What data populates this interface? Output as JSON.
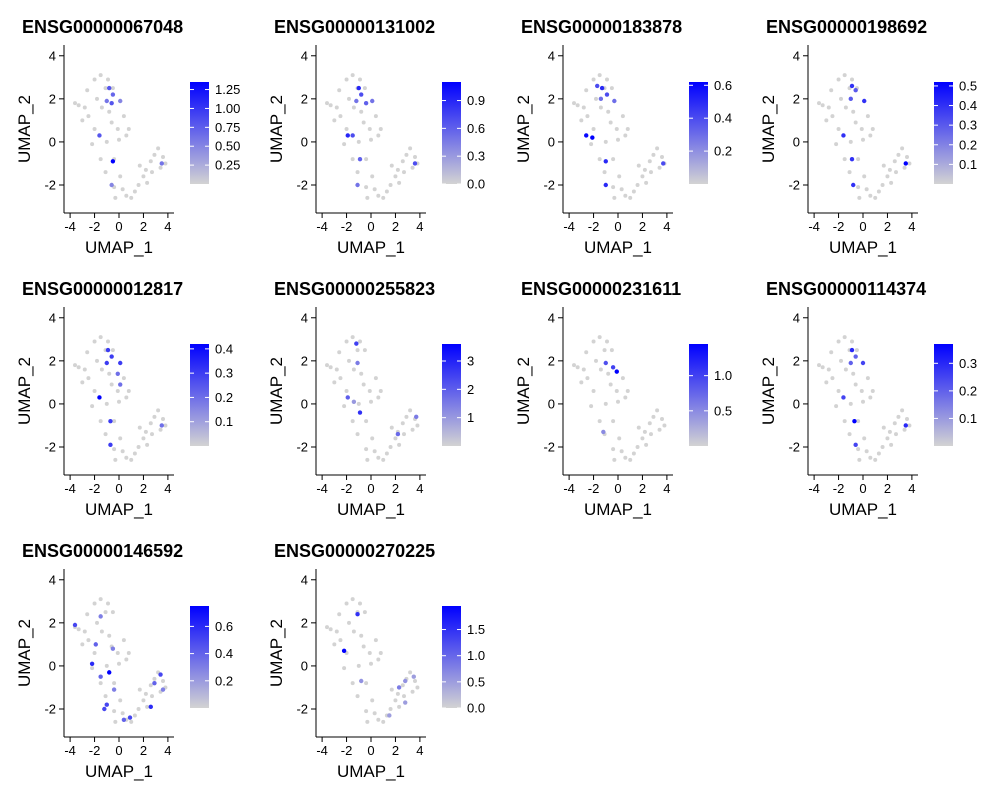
{
  "figure": {
    "background": "#ffffff",
    "axis_color": "#000000",
    "low_color": "#d3d3d3",
    "high_color": "#0000ff",
    "point_color_default": "#d3d3d3"
  },
  "chart_data": [
    {
      "type": "scatter",
      "title": "ENSG00000067048",
      "xlabel": "UMAP_1",
      "ylabel": "UMAP_2",
      "xlim": [
        -4.5,
        4.5
      ],
      "ylim": [
        -3.3,
        4.5
      ],
      "x_ticks": [
        -4,
        -2,
        0,
        2,
        4
      ],
      "x_tick_labels": [
        "-4",
        "-2",
        "0",
        "2",
        "4"
      ],
      "y_ticks": [
        -2,
        0,
        2,
        4
      ],
      "y_tick_labels": [
        "-2",
        "0",
        "2",
        "4"
      ],
      "color_scale": {
        "min": 0,
        "max": 1.35,
        "low_color": "#d3d3d3",
        "high_color": "#0000ff",
        "ticks": [
          0.25,
          0.5,
          0.75,
          1.0,
          1.25
        ],
        "tick_labels": [
          "0.25",
          "0.50",
          "0.75",
          "1.00",
          "1.25"
        ]
      },
      "points": [
        {
          "x": -0.8,
          "y": 2.5,
          "v": 0.8
        },
        {
          "x": -0.5,
          "y": 2.2,
          "v": 0.7
        },
        {
          "x": -1.0,
          "y": 1.9,
          "v": 0.6
        },
        {
          "x": -0.6,
          "y": 1.8,
          "v": 0.8
        },
        {
          "x": 0.1,
          "y": 1.9,
          "v": 0.5
        },
        {
          "x": -1.6,
          "y": 0.3,
          "v": 0.8
        },
        {
          "x": -0.5,
          "y": -0.9,
          "v": 1.35
        },
        {
          "x": -0.6,
          "y": -2.0,
          "v": 0.5
        },
        {
          "x": 3.5,
          "y": -1.0,
          "v": 0.6
        }
      ]
    },
    {
      "type": "scatter",
      "title": "ENSG00000131002",
      "xlabel": "UMAP_1",
      "ylabel": "UMAP_2",
      "xlim": [
        -4.5,
        4.5
      ],
      "ylim": [
        -3.3,
        4.5
      ],
      "x_ticks": [
        -4,
        -2,
        0,
        2,
        4
      ],
      "x_tick_labels": [
        "-4",
        "-2",
        "0",
        "2",
        "4"
      ],
      "y_ticks": [
        -2,
        0,
        2,
        4
      ],
      "y_tick_labels": [
        "-2",
        "0",
        "2",
        "4"
      ],
      "color_scale": {
        "min": 0,
        "max": 1.1,
        "low_color": "#d3d3d3",
        "high_color": "#0000ff",
        "ticks": [
          0.0,
          0.3,
          0.6,
          0.9
        ],
        "tick_labels": [
          "0.0",
          "0.3",
          "0.6",
          "0.9"
        ]
      },
      "points": [
        {
          "x": -1.0,
          "y": 2.5,
          "v": 0.9
        },
        {
          "x": -0.8,
          "y": 2.2,
          "v": 0.7
        },
        {
          "x": -1.2,
          "y": 1.9,
          "v": 0.5
        },
        {
          "x": -0.4,
          "y": 1.8,
          "v": 0.6
        },
        {
          "x": 0.1,
          "y": 1.9,
          "v": 0.5
        },
        {
          "x": -1.9,
          "y": 0.3,
          "v": 0.9
        },
        {
          "x": -1.5,
          "y": 0.3,
          "v": 0.7
        },
        {
          "x": -0.9,
          "y": -0.8,
          "v": 0.6
        },
        {
          "x": -1.1,
          "y": -2.0,
          "v": 0.5
        },
        {
          "x": 3.6,
          "y": -1.0,
          "v": 0.7
        }
      ]
    },
    {
      "type": "scatter",
      "title": "ENSG00000183878",
      "xlabel": "UMAP_1",
      "ylabel": "UMAP_2",
      "xlim": [
        -4.5,
        4.5
      ],
      "ylim": [
        -3.3,
        4.5
      ],
      "x_ticks": [
        -4,
        -2,
        0,
        2,
        4
      ],
      "x_tick_labels": [
        "-4",
        "-2",
        "0",
        "2",
        "4"
      ],
      "y_ticks": [
        -2,
        0,
        2,
        4
      ],
      "y_tick_labels": [
        "-2",
        "0",
        "2",
        "4"
      ],
      "color_scale": {
        "min": 0,
        "max": 0.62,
        "low_color": "#d3d3d3",
        "high_color": "#0000ff",
        "ticks": [
          0.2,
          0.4,
          0.6
        ],
        "tick_labels": [
          "0.2",
          "0.4",
          "0.6"
        ]
      },
      "points": [
        {
          "x": -1.7,
          "y": 2.6,
          "v": 0.4
        },
        {
          "x": -1.3,
          "y": 2.5,
          "v": 0.5
        },
        {
          "x": -0.9,
          "y": 2.2,
          "v": 0.4
        },
        {
          "x": -1.4,
          "y": 2.0,
          "v": 0.3
        },
        {
          "x": -0.3,
          "y": 1.9,
          "v": 0.3
        },
        {
          "x": -2.6,
          "y": 0.3,
          "v": 0.6
        },
        {
          "x": -2.1,
          "y": 0.2,
          "v": 0.62
        },
        {
          "x": -1.0,
          "y": -0.9,
          "v": 0.5
        },
        {
          "x": -1.0,
          "y": -2.0,
          "v": 0.5
        },
        {
          "x": 3.7,
          "y": -1.0,
          "v": 0.4
        }
      ]
    },
    {
      "type": "scatter",
      "title": "ENSG00000198692",
      "xlabel": "UMAP_1",
      "ylabel": "UMAP_2",
      "xlim": [
        -4.5,
        4.5
      ],
      "ylim": [
        -3.3,
        4.5
      ],
      "x_ticks": [
        -4,
        -2,
        0,
        2,
        4
      ],
      "x_tick_labels": [
        "-4",
        "-2",
        "0",
        "2",
        "4"
      ],
      "y_ticks": [
        -2,
        0,
        2,
        4
      ],
      "y_tick_labels": [
        "-2",
        "0",
        "2",
        "4"
      ],
      "color_scale": {
        "min": 0,
        "max": 0.52,
        "low_color": "#d3d3d3",
        "high_color": "#0000ff",
        "ticks": [
          0.1,
          0.2,
          0.3,
          0.4,
          0.5
        ],
        "tick_labels": [
          "0.1",
          "0.2",
          "0.3",
          "0.4",
          "0.5"
        ]
      },
      "points": [
        {
          "x": -0.9,
          "y": 2.6,
          "v": 0.4
        },
        {
          "x": -0.6,
          "y": 2.4,
          "v": 0.3
        },
        {
          "x": -1.0,
          "y": 2.0,
          "v": 0.3
        },
        {
          "x": 0.1,
          "y": 1.9,
          "v": 0.4
        },
        {
          "x": -1.6,
          "y": 0.3,
          "v": 0.4
        },
        {
          "x": -0.9,
          "y": -0.8,
          "v": 0.4
        },
        {
          "x": -0.8,
          "y": -2.0,
          "v": 0.4
        },
        {
          "x": 3.5,
          "y": -1.0,
          "v": 0.52
        }
      ]
    },
    {
      "type": "scatter",
      "title": "ENSG00000012817",
      "xlabel": "UMAP_1",
      "ylabel": "UMAP_2",
      "xlim": [
        -4.5,
        4.5
      ],
      "ylim": [
        -3.3,
        4.5
      ],
      "x_ticks": [
        -4,
        -2,
        0,
        2,
        4
      ],
      "x_tick_labels": [
        "-4",
        "-2",
        "0",
        "2",
        "4"
      ],
      "y_ticks": [
        -2,
        0,
        2,
        4
      ],
      "y_tick_labels": [
        "-2",
        "0",
        "2",
        "4"
      ],
      "color_scale": {
        "min": 0,
        "max": 0.42,
        "low_color": "#d3d3d3",
        "high_color": "#0000ff",
        "ticks": [
          0.1,
          0.2,
          0.3,
          0.4
        ],
        "tick_labels": [
          "0.1",
          "0.2",
          "0.3",
          "0.4"
        ]
      },
      "points": [
        {
          "x": -0.9,
          "y": 2.5,
          "v": 0.3
        },
        {
          "x": -0.6,
          "y": 2.2,
          "v": 0.3
        },
        {
          "x": -1.0,
          "y": 1.9,
          "v": 0.3
        },
        {
          "x": 0.1,
          "y": 1.9,
          "v": 0.3
        },
        {
          "x": -0.1,
          "y": 1.4,
          "v": 0.2
        },
        {
          "x": 0.1,
          "y": 0.9,
          "v": 0.2
        },
        {
          "x": -1.6,
          "y": 0.3,
          "v": 0.42
        },
        {
          "x": -0.7,
          "y": -0.8,
          "v": 0.3
        },
        {
          "x": -0.7,
          "y": -1.9,
          "v": 0.3
        },
        {
          "x": 3.5,
          "y": -1.0,
          "v": 0.2
        }
      ]
    },
    {
      "type": "scatter",
      "title": "ENSG00000255823",
      "xlabel": "UMAP_1",
      "ylabel": "UMAP_2",
      "xlim": [
        -4.5,
        4.5
      ],
      "ylim": [
        -3.3,
        4.5
      ],
      "x_ticks": [
        -4,
        -2,
        0,
        2,
        4
      ],
      "x_tick_labels": [
        "-4",
        "-2",
        "0",
        "2",
        "4"
      ],
      "y_ticks": [
        -2,
        0,
        2,
        4
      ],
      "y_tick_labels": [
        "-2",
        "0",
        "2",
        "4"
      ],
      "color_scale": {
        "min": 0,
        "max": 3.6,
        "low_color": "#d3d3d3",
        "high_color": "#0000ff",
        "ticks": [
          1,
          2,
          3
        ],
        "tick_labels": [
          "1",
          "2",
          "3"
        ]
      },
      "points": [
        {
          "x": -1.2,
          "y": 2.8,
          "v": 2.5
        },
        {
          "x": -1.1,
          "y": 1.9,
          "v": 1.5
        },
        {
          "x": -1.9,
          "y": 0.3,
          "v": 2.0
        },
        {
          "x": -1.4,
          "y": 0.1,
          "v": 1.0
        },
        {
          "x": -0.9,
          "y": -0.4,
          "v": 2.8
        },
        {
          "x": 2.2,
          "y": -1.4,
          "v": 1.8
        },
        {
          "x": 3.7,
          "y": -0.6,
          "v": 1.5
        }
      ]
    },
    {
      "type": "scatter",
      "title": "ENSG00000231611",
      "xlabel": "UMAP_1",
      "ylabel": "UMAP_2",
      "xlim": [
        -4.5,
        4.5
      ],
      "ylim": [
        -3.3,
        4.5
      ],
      "x_ticks": [
        -4,
        -2,
        0,
        2,
        4
      ],
      "x_tick_labels": [
        "-4",
        "-2",
        "0",
        "2",
        "4"
      ],
      "y_ticks": [
        -2,
        0,
        2,
        4
      ],
      "y_tick_labels": [
        "-2",
        "0",
        "2",
        "4"
      ],
      "color_scale": {
        "min": 0,
        "max": 1.45,
        "low_color": "#d3d3d3",
        "high_color": "#0000ff",
        "ticks": [
          0.5,
          1.0
        ],
        "tick_labels": [
          "0.5",
          "1.0"
        ]
      },
      "points": [
        {
          "x": -1.0,
          "y": 1.9,
          "v": 0.9
        },
        {
          "x": -0.4,
          "y": 1.7,
          "v": 1.0
        },
        {
          "x": -0.1,
          "y": 1.5,
          "v": 1.45
        },
        {
          "x": -1.2,
          "y": -1.3,
          "v": 0.5
        }
      ]
    },
    {
      "type": "scatter",
      "title": "ENSG00000114374",
      "xlabel": "UMAP_1",
      "ylabel": "UMAP_2",
      "xlim": [
        -4.5,
        4.5
      ],
      "ylim": [
        -3.3,
        4.5
      ],
      "x_ticks": [
        -4,
        -2,
        0,
        2,
        4
      ],
      "x_tick_labels": [
        "-4",
        "-2",
        "0",
        "2",
        "4"
      ],
      "y_ticks": [
        -2,
        0,
        2,
        4
      ],
      "y_tick_labels": [
        "-2",
        "0",
        "2",
        "4"
      ],
      "color_scale": {
        "min": 0,
        "max": 0.37,
        "low_color": "#d3d3d3",
        "high_color": "#0000ff",
        "ticks": [
          0.1,
          0.2,
          0.3
        ],
        "tick_labels": [
          "0.1",
          "0.2",
          "0.3"
        ]
      },
      "points": [
        {
          "x": -0.9,
          "y": 2.5,
          "v": 0.3
        },
        {
          "x": -0.6,
          "y": 2.2,
          "v": 0.2
        },
        {
          "x": -1.0,
          "y": 1.9,
          "v": 0.2
        },
        {
          "x": 0.0,
          "y": 1.9,
          "v": 0.25
        },
        {
          "x": -1.6,
          "y": 0.3,
          "v": 0.25
        },
        {
          "x": -0.7,
          "y": -0.8,
          "v": 0.37
        },
        {
          "x": -0.6,
          "y": -1.9,
          "v": 0.25
        },
        {
          "x": 3.5,
          "y": -1.0,
          "v": 0.3
        }
      ]
    },
    {
      "type": "scatter",
      "title": "ENSG00000146592",
      "xlabel": "UMAP_1",
      "ylabel": "UMAP_2",
      "xlim": [
        -4.5,
        4.5
      ],
      "ylim": [
        -3.3,
        4.5
      ],
      "x_ticks": [
        -4,
        -2,
        0,
        2,
        4
      ],
      "x_tick_labels": [
        "-4",
        "-2",
        "0",
        "2",
        "4"
      ],
      "y_ticks": [
        -2,
        0,
        2,
        4
      ],
      "y_tick_labels": [
        "-2",
        "0",
        "2",
        "4"
      ],
      "color_scale": {
        "min": 0,
        "max": 0.75,
        "low_color": "#d3d3d3",
        "high_color": "#0000ff",
        "ticks": [
          0.2,
          0.4,
          0.6
        ],
        "tick_labels": [
          "0.2",
          "0.4",
          "0.6"
        ]
      },
      "points": [
        {
          "x": -3.6,
          "y": 1.9,
          "v": 0.5
        },
        {
          "x": -1.5,
          "y": 2.3,
          "v": 0.3
        },
        {
          "x": -1.9,
          "y": 1.0,
          "v": 0.4
        },
        {
          "x": -0.5,
          "y": 0.8,
          "v": 0.3
        },
        {
          "x": -2.2,
          "y": 0.1,
          "v": 0.6
        },
        {
          "x": -1.5,
          "y": -0.5,
          "v": 0.4
        },
        {
          "x": -0.8,
          "y": -0.3,
          "v": 0.75
        },
        {
          "x": -0.4,
          "y": -1.1,
          "v": 0.3
        },
        {
          "x": -1.0,
          "y": -1.8,
          "v": 0.5
        },
        {
          "x": -1.2,
          "y": -2.0,
          "v": 0.5
        },
        {
          "x": 0.4,
          "y": -2.5,
          "v": 0.4
        },
        {
          "x": 0.9,
          "y": -2.4,
          "v": 0.5
        },
        {
          "x": 2.6,
          "y": -1.9,
          "v": 0.6
        },
        {
          "x": 3.4,
          "y": -0.4,
          "v": 0.5
        },
        {
          "x": 2.9,
          "y": -0.8,
          "v": 0.4
        },
        {
          "x": 3.6,
          "y": -1.1,
          "v": 0.3
        }
      ]
    },
    {
      "type": "scatter",
      "title": "ENSG00000270225",
      "xlabel": "UMAP_1",
      "ylabel": "UMAP_2",
      "xlim": [
        -4.5,
        4.5
      ],
      "ylim": [
        -3.3,
        4.5
      ],
      "x_ticks": [
        -4,
        -2,
        0,
        2,
        4
      ],
      "x_tick_labels": [
        "-4",
        "-2",
        "0",
        "2",
        "4"
      ],
      "y_ticks": [
        -2,
        0,
        2,
        4
      ],
      "y_tick_labels": [
        "-2",
        "0",
        "2",
        "4"
      ],
      "color_scale": {
        "min": 0,
        "max": 1.95,
        "low_color": "#d3d3d3",
        "high_color": "#0000ff",
        "ticks": [
          0.0,
          0.5,
          1.0,
          1.5
        ],
        "tick_labels": [
          "0.0",
          "0.5",
          "1.0",
          "1.5"
        ]
      },
      "points": [
        {
          "x": -1.1,
          "y": 2.4,
          "v": 1.5
        },
        {
          "x": -2.2,
          "y": 0.7,
          "v": 1.95
        },
        {
          "x": -0.8,
          "y": -0.7,
          "v": 0.6
        },
        {
          "x": 2.3,
          "y": -1.0,
          "v": 0.8
        },
        {
          "x": 2.8,
          "y": -0.7,
          "v": 0.6
        },
        {
          "x": 3.5,
          "y": -0.5,
          "v": 0.5
        },
        {
          "x": 2.8,
          "y": -1.7,
          "v": 0.5
        },
        {
          "x": 1.5,
          "y": -2.3,
          "v": 0.5
        }
      ]
    }
  ],
  "background_cells": [
    [
      -3.6,
      1.8
    ],
    [
      -3.3,
      1.7
    ],
    [
      -2.6,
      2.4
    ],
    [
      -2.0,
      2.9
    ],
    [
      -1.5,
      3.1
    ],
    [
      -0.9,
      2.9
    ],
    [
      -0.5,
      2.5
    ],
    [
      -1.8,
      2.0
    ],
    [
      -1.4,
      1.6
    ],
    [
      -2.5,
      1.2
    ],
    [
      -3.0,
      1.0
    ],
    [
      -0.6,
      0.9
    ],
    [
      -0.1,
      0.6
    ],
    [
      0.4,
      1.2
    ],
    [
      0.8,
      0.6
    ],
    [
      -2.0,
      0.6
    ],
    [
      -1.0,
      0.0
    ],
    [
      -1.5,
      -0.8
    ],
    [
      -0.4,
      -0.8
    ],
    [
      -1.1,
      -1.4
    ],
    [
      0.1,
      -1.6
    ],
    [
      -0.4,
      -2.1
    ],
    [
      -0.3,
      -2.6
    ],
    [
      0.3,
      -2.2
    ],
    [
      0.6,
      -2.5
    ],
    [
      1.0,
      -2.6
    ],
    [
      1.3,
      -2.3
    ],
    [
      1.6,
      -2.0
    ],
    [
      2.0,
      -1.6
    ],
    [
      1.7,
      -1.1
    ],
    [
      2.2,
      -1.3
    ],
    [
      2.6,
      -0.9
    ],
    [
      2.9,
      -0.6
    ],
    [
      3.2,
      -0.3
    ],
    [
      3.6,
      -0.7
    ],
    [
      3.8,
      -1.0
    ],
    [
      3.4,
      -1.2
    ],
    [
      2.7,
      -1.4
    ],
    [
      2.3,
      -1.9
    ],
    [
      0.0,
      0.1
    ],
    [
      -2.2,
      -0.1
    ],
    [
      -0.8,
      1.4
    ],
    [
      -1.1,
      2.5
    ],
    [
      -2.8,
      1.6
    ],
    [
      0.6,
      0.3
    ]
  ]
}
